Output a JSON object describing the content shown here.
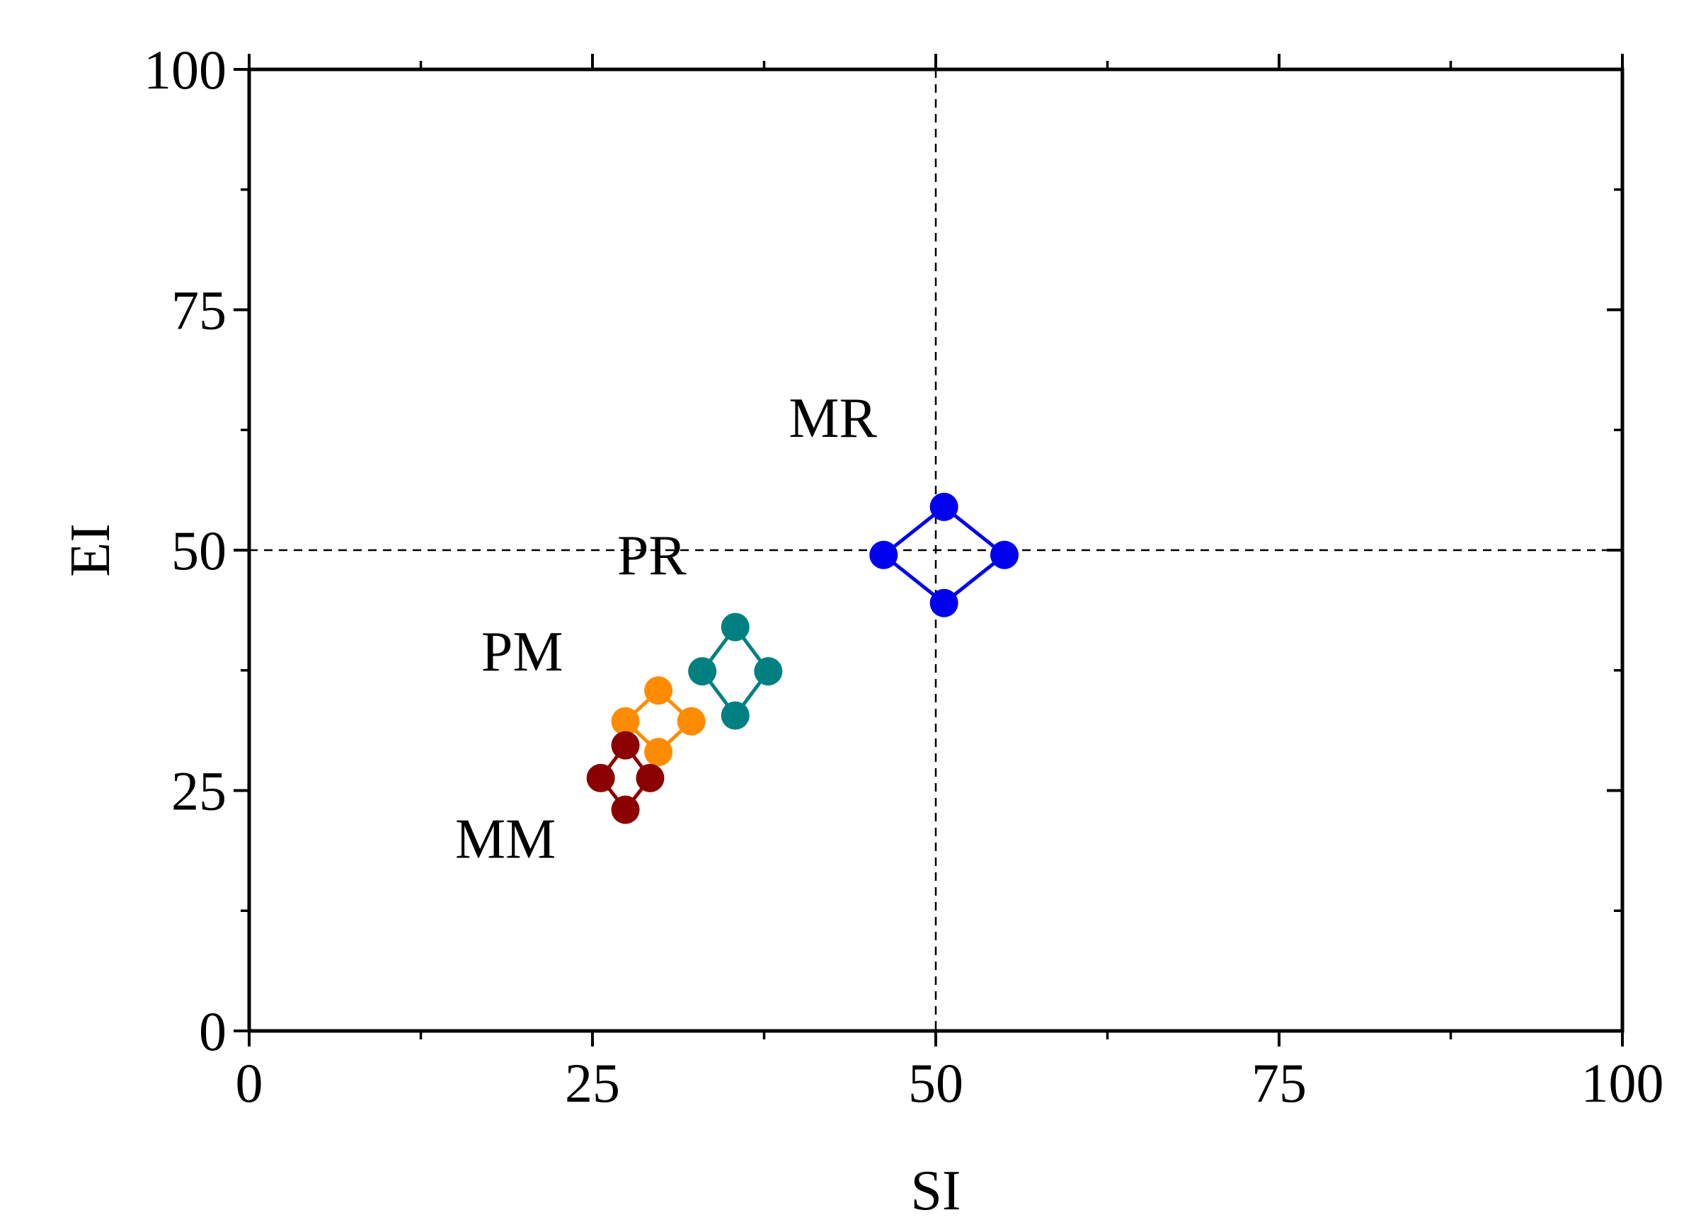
{
  "chart_data": {
    "type": "scatter",
    "title": "",
    "xlabel": "SI",
    "ylabel": "EI",
    "xlim": [
      0,
      100
    ],
    "ylim": [
      0,
      100
    ],
    "xticks": [
      "0",
      "25",
      "50",
      "75",
      "100"
    ],
    "yticks": [
      "0",
      "25",
      "50",
      "75",
      "100"
    ],
    "grid": false,
    "reference_lines": {
      "x": 50,
      "y": 50,
      "style": "dashed"
    },
    "series": [
      {
        "name": "MR",
        "color": "#0000ee",
        "points": [
          [
            50.6,
            54.5
          ],
          [
            55.0,
            49.5
          ],
          [
            50.6,
            44.5
          ],
          [
            46.2,
            49.5
          ]
        ]
      },
      {
        "name": "PR",
        "color": "#008080",
        "points": [
          [
            35.4,
            42.0
          ],
          [
            37.8,
            37.4
          ],
          [
            35.4,
            32.8
          ],
          [
            33.0,
            37.4
          ]
        ]
      },
      {
        "name": "PM",
        "color": "#ff8c00",
        "points": [
          [
            29.8,
            35.4
          ],
          [
            32.2,
            32.2
          ],
          [
            29.8,
            29.0
          ],
          [
            27.4,
            32.2
          ]
        ]
      },
      {
        "name": "MM",
        "color": "#8b0000",
        "points": [
          [
            27.4,
            29.7
          ],
          [
            29.2,
            26.3
          ],
          [
            27.4,
            23.0
          ],
          [
            25.6,
            26.3
          ]
        ]
      }
    ],
    "annotations": [
      {
        "text": "MR",
        "x": 39.3,
        "y": 61.8,
        "series": "MR"
      },
      {
        "text": "PR",
        "x": 26.8,
        "y": 47.5,
        "series": "PR"
      },
      {
        "text": "PM",
        "x": 16.9,
        "y": 37.5,
        "series": "PM"
      },
      {
        "text": "MM",
        "x": 15.0,
        "y": 18.0,
        "series": "MM"
      }
    ]
  }
}
